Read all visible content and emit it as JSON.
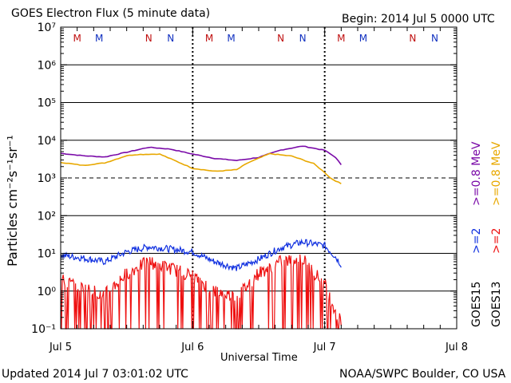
{
  "header": {
    "title": "GOES Electron Flux (5 minute data)",
    "begin": "Begin: 2014 Jul 5 0000 UTC"
  },
  "footer": {
    "updated": "Updated 2014 Jul  7 03:01:02 UTC",
    "source": "NOAA/SWPC Boulder, CO USA"
  },
  "colors": {
    "purple": "#7a0aa8",
    "orange": "#e8a800",
    "blue": "#1030e0",
    "red": "#ee1010",
    "marker_m": "#c01010",
    "marker_n_red": "#c01010",
    "marker_n_blue": "#1030c0"
  },
  "chart_data": {
    "type": "line",
    "title": "GOES Electron Flux (5 minute data)",
    "xlabel": "Universal Time",
    "ylabel": "Particles cm⁻²s⁻¹sr⁻¹",
    "yscale": "log",
    "ylim": [
      0.1,
      10000000
    ],
    "xlim": [
      "2014-07-05 00:00",
      "2014-07-08 00:00"
    ],
    "x_ticks": [
      "Jul 5",
      "Jul 6",
      "Jul 7",
      "Jul 8"
    ],
    "y_ticks": [
      "10⁻¹",
      "10⁰",
      "10¹",
      "10²",
      "10³",
      "10⁴",
      "10⁵",
      "10⁶",
      "10⁷"
    ],
    "grid": true,
    "threshold_line": 1000,
    "legend": {
      "sat_labels": [
        "GOES15",
        "GOES13"
      ],
      "energy_labels": [
        {
          "text": ">=0.8 MeV",
          "color": "purple"
        },
        {
          "text": ">=0.8 MeV",
          "color": "orange"
        },
        {
          "text": ">=2",
          "color": "blue"
        },
        {
          "text": ">=2",
          "color": "red"
        }
      ]
    },
    "markers": [
      {
        "label": "M",
        "hour": 3,
        "color": "marker_m"
      },
      {
        "label": "M",
        "hour": 7,
        "color": "marker_n_blue"
      },
      {
        "label": "N",
        "hour": 16,
        "color": "marker_n_red"
      },
      {
        "label": "N",
        "hour": 20,
        "color": "marker_n_blue"
      },
      {
        "label": "M",
        "hour": 27,
        "color": "marker_m"
      },
      {
        "label": "M",
        "hour": 31,
        "color": "marker_n_blue"
      },
      {
        "label": "N",
        "hour": 40,
        "color": "marker_n_red"
      },
      {
        "label": "N",
        "hour": 44,
        "color": "marker_n_blue"
      },
      {
        "label": "M",
        "hour": 51,
        "color": "marker_m"
      },
      {
        "label": "M",
        "hour": 55,
        "color": "marker_n_blue"
      },
      {
        "label": "N",
        "hour": 64,
        "color": "marker_n_red"
      },
      {
        "label": "N",
        "hour": 68,
        "color": "marker_n_blue"
      }
    ],
    "series": [
      {
        "name": "GOES15 >=0.8 MeV",
        "color": "purple",
        "hours": [
          0,
          4,
          8,
          12,
          16,
          20,
          24,
          28,
          32,
          36,
          40,
          44,
          48,
          50,
          51
        ],
        "values": [
          4500,
          3900,
          3600,
          4800,
          6500,
          5800,
          4300,
          3300,
          2900,
          3500,
          5500,
          7000,
          5400,
          3500,
          2200
        ]
      },
      {
        "name": "GOES13 >=0.8 MeV",
        "color": "orange",
        "hours": [
          0,
          4,
          8,
          12,
          14,
          18,
          24,
          28,
          32,
          34,
          38,
          42,
          46,
          48,
          49,
          51
        ],
        "values": [
          2600,
          2150,
          2500,
          3900,
          4200,
          4300,
          1800,
          1500,
          1650,
          2500,
          4400,
          3800,
          2400,
          1400,
          1000,
          700
        ]
      },
      {
        "name": "GOES15 >=2",
        "color": "blue",
        "hours": [
          0,
          4,
          8,
          12,
          16,
          20,
          24,
          28,
          32,
          36,
          40,
          44,
          48,
          50,
          51
        ],
        "values": [
          9,
          7.5,
          6,
          11,
          15,
          13,
          11,
          6,
          4,
          7,
          14,
          20,
          16,
          8,
          5
        ]
      },
      {
        "name": "GOES13 >=2",
        "color": "red",
        "hours": [
          0,
          4,
          8,
          12,
          16,
          20,
          24,
          28,
          32,
          36,
          40,
          44,
          48,
          50,
          51
        ],
        "values": [
          2,
          1.2,
          0.8,
          3,
          6,
          4,
          2.5,
          1,
          0.7,
          3,
          6,
          7,
          1.5,
          0.3,
          0.15
        ]
      }
    ]
  }
}
